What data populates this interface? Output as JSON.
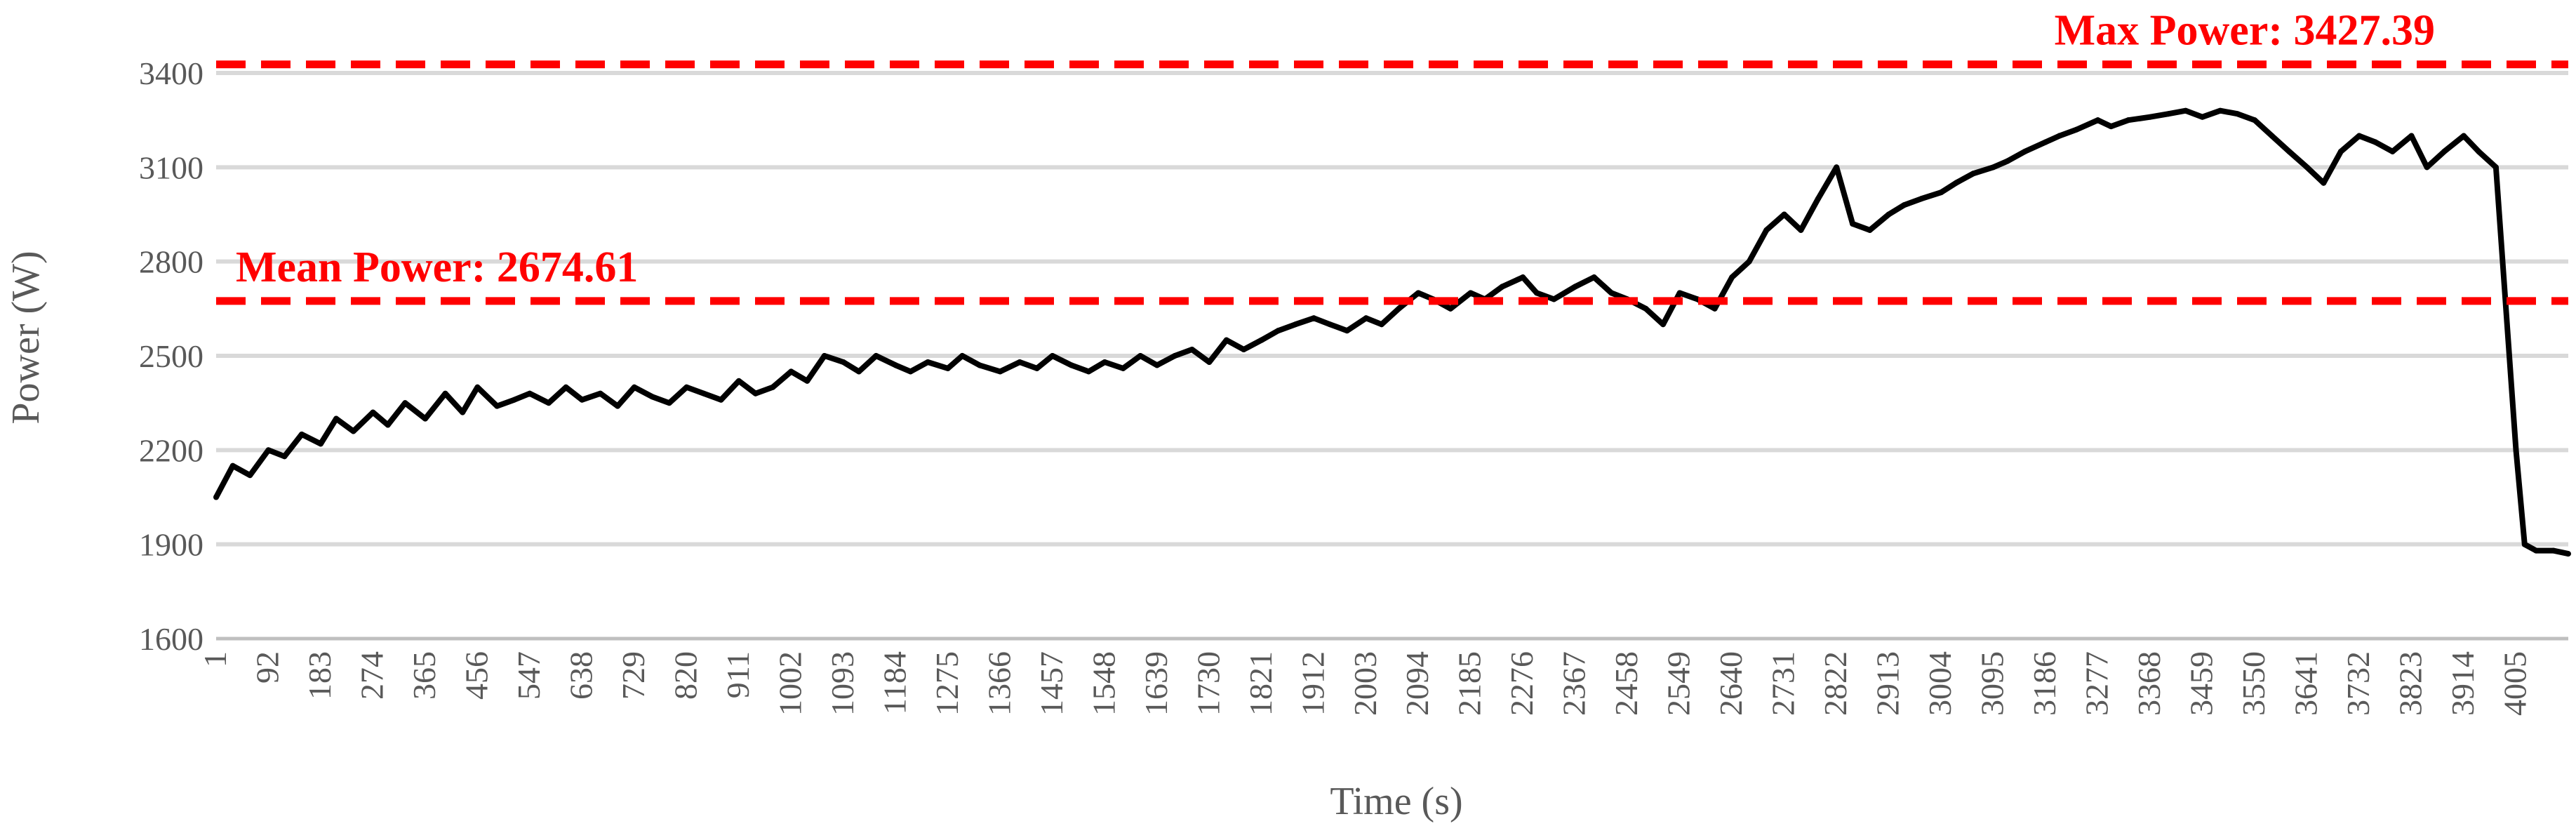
{
  "chart_data": {
    "type": "line",
    "title": "",
    "xlabel": "Time (s)",
    "ylabel": "Power (W)",
    "ylim": [
      1600,
      3400
    ],
    "yticks": [
      1600,
      1900,
      2200,
      2500,
      2800,
      3100,
      3400
    ],
    "xlim": [
      1,
      4096
    ],
    "xticks": [
      1,
      92,
      183,
      274,
      365,
      456,
      547,
      638,
      729,
      820,
      911,
      1002,
      1093,
      1184,
      1275,
      1366,
      1457,
      1548,
      1639,
      1730,
      1821,
      1912,
      2003,
      2094,
      2185,
      2276,
      2367,
      2458,
      2549,
      2640,
      2731,
      2822,
      2913,
      3004,
      3095,
      3186,
      3277,
      3368,
      3459,
      3550,
      3641,
      3732,
      3823,
      3914,
      4005
    ],
    "grid": true,
    "legend": "none",
    "line_color": "#000000",
    "series": [
      {
        "x": [
          1,
          30,
          60,
          92,
          120,
          150,
          183,
          210,
          240,
          274,
          300,
          330,
          365,
          400,
          430,
          456,
          490,
          520,
          547,
          580,
          610,
          638,
          670,
          700,
          729,
          760,
          790,
          820,
          850,
          880,
          911,
          940,
          970,
          1002,
          1030,
          1060,
          1093,
          1120,
          1150,
          1184,
          1210,
          1240,
          1275,
          1300,
          1330,
          1366,
          1400,
          1430,
          1457,
          1490,
          1520,
          1548,
          1580,
          1610,
          1639,
          1670,
          1700,
          1730,
          1760,
          1790,
          1821,
          1850,
          1880,
          1912,
          1940,
          1970,
          2003,
          2030,
          2060,
          2094,
          2120,
          2150,
          2185,
          2210,
          2240,
          2276,
          2300,
          2330,
          2367,
          2400,
          2430,
          2458,
          2490,
          2520,
          2549,
          2580,
          2610,
          2640,
          2670,
          2700,
          2731,
          2760,
          2790,
          2822,
          2850,
          2880,
          2913,
          2940,
          2970,
          3004,
          3030,
          3060,
          3095,
          3120,
          3150,
          3186,
          3210,
          3240,
          3277,
          3300,
          3330,
          3368,
          3400,
          3430,
          3459,
          3490,
          3520,
          3550,
          3580,
          3610,
          3641,
          3670,
          3700,
          3732,
          3760,
          3790,
          3823,
          3850,
          3880,
          3914,
          3940,
          3970,
          4005,
          4020,
          4040,
          4070,
          4096
        ],
        "y": [
          2050,
          2150,
          2120,
          2200,
          2180,
          2250,
          2220,
          2300,
          2260,
          2320,
          2280,
          2350,
          2300,
          2380,
          2320,
          2400,
          2340,
          2360,
          2380,
          2350,
          2400,
          2360,
          2380,
          2340,
          2400,
          2370,
          2350,
          2400,
          2380,
          2360,
          2420,
          2380,
          2400,
          2450,
          2420,
          2500,
          2480,
          2450,
          2500,
          2470,
          2450,
          2480,
          2460,
          2500,
          2470,
          2450,
          2480,
          2460,
          2500,
          2470,
          2450,
          2480,
          2460,
          2500,
          2470,
          2500,
          2520,
          2480,
          2550,
          2520,
          2550,
          2580,
          2600,
          2620,
          2600,
          2580,
          2620,
          2600,
          2650,
          2700,
          2680,
          2650,
          2700,
          2680,
          2720,
          2750,
          2700,
          2680,
          2720,
          2750,
          2700,
          2680,
          2650,
          2600,
          2700,
          2680,
          2650,
          2750,
          2800,
          2900,
          2950,
          2900,
          3000,
          3100,
          2920,
          2900,
          2950,
          2980,
          3000,
          3020,
          3050,
          3080,
          3100,
          3120,
          3150,
          3180,
          3200,
          3220,
          3250,
          3230,
          3250,
          3260,
          3270,
          3280,
          3260,
          3280,
          3270,
          3250,
          3200,
          3150,
          3100,
          3050,
          3150,
          3200,
          3180,
          3150,
          3200,
          3100,
          3150,
          3200,
          3150,
          3100,
          2200,
          1900,
          1880,
          1880,
          1870
        ]
      }
    ],
    "reference_lines": [
      {
        "label": "Max Power: 3427.39",
        "value": 3427.39,
        "color": "#ff0000",
        "style": "dashed"
      },
      {
        "label": "Mean Power: 2674.61",
        "value": 2674.61,
        "color": "#ff0000",
        "style": "dashed"
      }
    ]
  }
}
